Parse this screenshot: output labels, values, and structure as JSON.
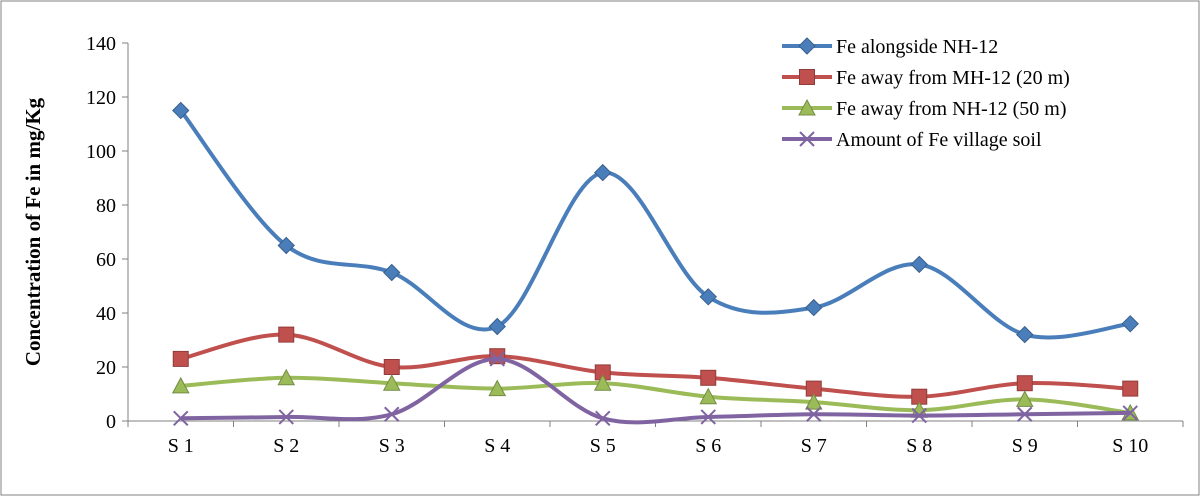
{
  "chart_data": {
    "type": "line",
    "title": "",
    "xlabel": "",
    "ylabel": "Concentration of Fe in mg/Kg",
    "ylim": [
      0,
      140
    ],
    "yticks": [
      0,
      20,
      40,
      60,
      80,
      100,
      120,
      140
    ],
    "grid": false,
    "legend_position": "top-right",
    "smooth": true,
    "categories": [
      "S 1",
      "S 2",
      "S 3",
      "S 4",
      "S 5",
      "S 6",
      "S 7",
      "S 8",
      "S 9",
      "S 10"
    ],
    "series": [
      {
        "name": "Fe alongside NH-12",
        "color": "#4a7ebb",
        "marker": "diamond",
        "values": [
          115,
          65,
          55,
          35,
          92,
          46,
          42,
          58,
          32,
          36
        ]
      },
      {
        "name": "Fe away from MH-12 (20 m)",
        "color": "#c0504d",
        "marker": "square",
        "values": [
          23,
          32,
          20,
          24,
          18,
          16,
          12,
          9,
          14,
          12
        ]
      },
      {
        "name": "Fe away from NH-12 (50 m)",
        "color": "#9bbb59",
        "marker": "triangle",
        "values": [
          13,
          16,
          14,
          12,
          14,
          9,
          7,
          4,
          8,
          3
        ]
      },
      {
        "name": "Amount of Fe village soil",
        "color": "#8064a2",
        "marker": "x",
        "values": [
          1,
          1.5,
          2.5,
          23,
          1,
          1.5,
          2.5,
          2,
          2.5,
          3
        ]
      }
    ]
  }
}
